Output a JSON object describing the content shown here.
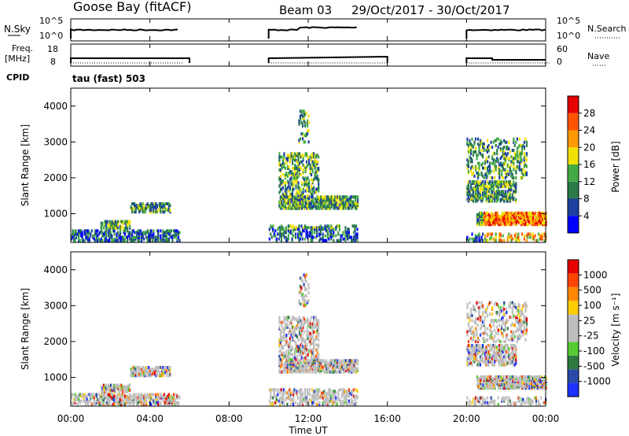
{
  "header": {
    "station": "Goose Bay (fitACF)",
    "beam": "Beam 03",
    "dates": "29/Oct/2017 - 30/Oct/2017"
  },
  "strips": {
    "nsky": {
      "label": "N.Sky",
      "left_ticks": [
        "10^5",
        "10^0"
      ],
      "right_ticks": [
        "10^5",
        "10^0"
      ],
      "right_label": "N.Search"
    },
    "freq": {
      "label_line1": "Freq.",
      "label_line2": "[MHz]",
      "left_ticks": [
        "18",
        "8"
      ],
      "right_ticks": [
        "60",
        "0"
      ],
      "right_label": "Nave"
    },
    "cpid": {
      "label": "CPID",
      "mode": "tau (fast) 503"
    }
  },
  "colors": {
    "power_scale": [
      "#0000ff",
      "#1c3fa0",
      "#2a7a4a",
      "#44aa44",
      "#f0e000",
      "#ff9900",
      "#ff5500",
      "#e60000"
    ],
    "velocity_scale": [
      "#1e32ff",
      "#2a4aa8",
      "#2f7a40",
      "#55cc33",
      "#bebebe",
      "#bebebe",
      "#ffcc00",
      "#ff8800",
      "#ff4400",
      "#e60000"
    ]
  },
  "chart_data": [
    {
      "type": "heatmap",
      "panel": "power",
      "ylabel": "Slant Range [km]",
      "yticks": [
        "1000",
        "2000",
        "3000",
        "4000"
      ],
      "ylim": [
        200,
        4500
      ],
      "colorbar_label": "Power [dB]",
      "colorbar_ticks": [
        "28",
        "24",
        "20",
        "16",
        "12",
        "8",
        "4"
      ],
      "colorbar_range": [
        0,
        30
      ],
      "observed_intervals_hours": [
        [
          0,
          5.5
        ],
        [
          10,
          14.5
        ],
        [
          20,
          24
        ]
      ]
    },
    {
      "type": "heatmap",
      "panel": "velocity",
      "ylabel": "Slant Range [km]",
      "yticks": [
        "1000",
        "2000",
        "3000",
        "4000"
      ],
      "ylim": [
        200,
        4500
      ],
      "colorbar_label": "Velocity [m s⁻¹]",
      "colorbar_ticks": [
        "1000",
        "500",
        "100",
        "25",
        "-25",
        "-100",
        "-500",
        "-1000"
      ],
      "observed_intervals_hours": [
        [
          0,
          5.5
        ],
        [
          10,
          14.5
        ],
        [
          20,
          24
        ]
      ]
    }
  ],
  "xaxis": {
    "ticks": [
      "00:00",
      "04:00",
      "08:00",
      "12:00",
      "16:00",
      "20:00",
      "00:00"
    ],
    "label": "Time UT",
    "xlim_hours": [
      0,
      24
    ]
  }
}
